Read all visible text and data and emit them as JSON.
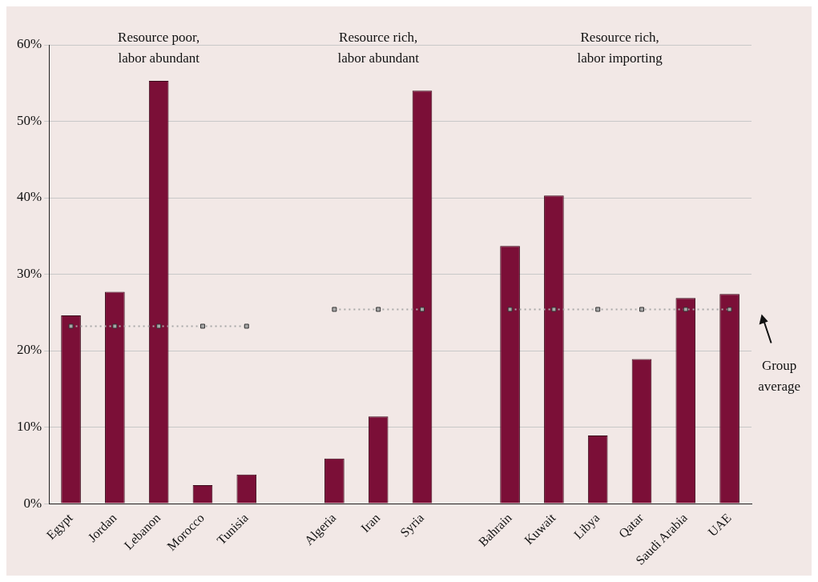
{
  "chart_data": {
    "type": "bar",
    "categories": [
      "Egypt",
      "Jordan",
      "Lebanon",
      "Morocco",
      "Tunisia",
      null,
      "Algeria",
      "Iran",
      "Syria",
      null,
      "Bahrain",
      "Kuwait",
      "Libya",
      "Qatar",
      "Saudi Arabia",
      "UAE"
    ],
    "series": [
      {
        "color": "#7b0f37",
        "values": [
          24.6,
          27.7,
          55.3,
          2.4,
          3.8,
          null,
          5.9,
          11.4,
          54.0,
          null,
          33.7,
          40.3,
          8.9,
          18.9,
          26.9,
          27.4
        ]
      },
      {
        "type": "line",
        "name": "Group average",
        "color": "#a8a8a8",
        "line_style": "dotted",
        "marker": "square",
        "values": [
          23.2,
          23.2,
          23.2,
          23.2,
          23.2,
          null,
          25.4,
          25.4,
          25.4,
          null,
          25.4,
          25.4,
          25.4,
          25.4,
          25.4,
          25.4
        ]
      }
    ],
    "ylim": [
      0,
      60
    ],
    "yticks": [
      {
        "value": 0,
        "label": "0%"
      },
      {
        "value": 10,
        "label": "10%"
      },
      {
        "value": 20,
        "label": "20%"
      },
      {
        "value": 30,
        "label": "30%"
      },
      {
        "value": 40,
        "label": "40%"
      },
      {
        "value": 50,
        "label": "50%"
      },
      {
        "value": 60,
        "label": "60%"
      }
    ],
    "grid": "y",
    "legend": false,
    "annotations": [
      "Resource poor, labor abundant",
      "Resource rich, labor abundant",
      "Resource rich, labor importing"
    ]
  }
}
